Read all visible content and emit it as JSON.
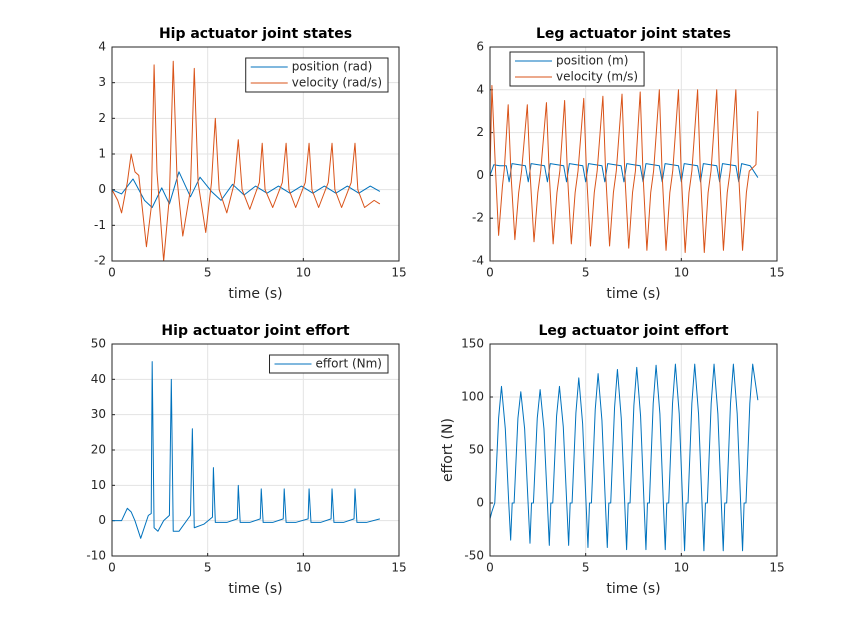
{
  "chart_data": [
    {
      "type": "line",
      "title": "Hip actuator joint states",
      "xlabel": "time (s)",
      "xlim": [
        0,
        15
      ],
      "xticks": [
        0,
        5,
        10,
        15
      ],
      "ylim": [
        -2,
        4
      ],
      "yticks": [
        -2,
        -1,
        0,
        1,
        2,
        3,
        4
      ],
      "grid": true,
      "legend": "upper-right",
      "series": [
        {
          "name": "position (rad)",
          "color": "#0072bd",
          "x": [
            0,
            0.5,
            1.1,
            1.7,
            2.1,
            2.6,
            3.0,
            3.5,
            4.1,
            4.6,
            5.2,
            5.7,
            6.3,
            6.9,
            7.5,
            8.1,
            8.7,
            9.3,
            9.9,
            10.5,
            11.1,
            11.7,
            12.3,
            12.9,
            13.5,
            14
          ],
          "values": [
            0,
            -0.12,
            0.3,
            -0.3,
            -0.5,
            0.05,
            -0.4,
            0.5,
            -0.2,
            0.35,
            -0.05,
            -0.3,
            0.15,
            -0.15,
            0.1,
            -0.1,
            0.1,
            -0.1,
            0.1,
            -0.1,
            0.1,
            -0.1,
            0.1,
            -0.1,
            0.1,
            -0.05
          ]
        },
        {
          "name": "velocity (rad/s)",
          "color": "#d95319",
          "x": [
            0,
            0.3,
            0.5,
            0.8,
            1.0,
            1.2,
            1.4,
            1.8,
            2.05,
            2.2,
            2.35,
            2.7,
            3.0,
            3.2,
            3.4,
            3.7,
            4.1,
            4.3,
            4.5,
            4.9,
            5.2,
            5.4,
            5.6,
            6.0,
            6.4,
            6.6,
            6.8,
            7.2,
            7.7,
            7.85,
            8.0,
            8.4,
            8.9,
            9.1,
            9.25,
            9.6,
            10.1,
            10.3,
            10.45,
            10.8,
            11.3,
            11.5,
            11.65,
            12.0,
            12.5,
            12.7,
            12.85,
            13.2,
            13.7,
            14
          ],
          "values": [
            0,
            -0.3,
            -0.65,
            0.2,
            1.0,
            0.5,
            0.4,
            -1.6,
            -0.5,
            3.5,
            0.5,
            -2.0,
            -0.2,
            3.6,
            0.3,
            -1.3,
            0.0,
            3.4,
            0.2,
            -1.2,
            0.2,
            2.0,
            0.0,
            -0.65,
            0.2,
            1.4,
            0.0,
            -0.55,
            0.2,
            1.3,
            0.0,
            -0.5,
            0.2,
            1.3,
            0.0,
            -0.5,
            0.2,
            1.3,
            0.0,
            -0.5,
            0.2,
            1.3,
            0.0,
            -0.5,
            0.2,
            1.3,
            0.0,
            -0.5,
            -0.3,
            -0.4
          ]
        }
      ]
    },
    {
      "type": "line",
      "title": "Leg actuator joint states",
      "xlabel": "time (s)",
      "xlim": [
        0,
        15
      ],
      "xticks": [
        0,
        5,
        10,
        15
      ],
      "ylim": [
        -4,
        6
      ],
      "yticks": [
        -4,
        -2,
        0,
        2,
        4,
        6
      ],
      "grid": true,
      "legend": "upper-left",
      "series": [
        {
          "name": "position (m)",
          "color": "#0072bd",
          "x": [
            0,
            0.2,
            0.5,
            0.85,
            1.0,
            1.15,
            1.85,
            2.0,
            2.15,
            2.85,
            3.0,
            3.15,
            3.85,
            4.0,
            4.15,
            4.85,
            5.0,
            5.15,
            5.85,
            6.0,
            6.15,
            6.85,
            7.0,
            7.15,
            7.85,
            8.0,
            8.15,
            8.85,
            9.0,
            9.15,
            9.85,
            10.0,
            10.15,
            10.85,
            11.0,
            11.15,
            11.85,
            12.0,
            12.15,
            12.85,
            13.0,
            13.15,
            13.6,
            14
          ],
          "values": [
            0,
            0.5,
            0.45,
            0.45,
            -0.3,
            0.55,
            0.45,
            -0.3,
            0.55,
            0.45,
            -0.3,
            0.55,
            0.45,
            -0.3,
            0.55,
            0.45,
            -0.3,
            0.55,
            0.45,
            -0.3,
            0.55,
            0.45,
            -0.3,
            0.55,
            0.45,
            -0.3,
            0.55,
            0.45,
            -0.3,
            0.55,
            0.45,
            -0.3,
            0.55,
            0.45,
            -0.3,
            0.55,
            0.45,
            -0.3,
            0.55,
            0.45,
            -0.3,
            0.55,
            0.45,
            -0.1
          ]
        },
        {
          "name": "velocity (m/s)",
          "color": "#d95319",
          "x": [
            0,
            0.1,
            0.3,
            0.45,
            0.65,
            0.75,
            0.95,
            1.1,
            1.3,
            1.5,
            1.65,
            1.95,
            2.1,
            2.3,
            2.5,
            2.65,
            2.95,
            3.1,
            3.3,
            3.5,
            3.65,
            3.9,
            4.05,
            4.25,
            4.45,
            4.6,
            4.9,
            5.05,
            5.25,
            5.45,
            5.6,
            5.9,
            6.05,
            6.25,
            6.45,
            6.6,
            6.9,
            7.05,
            7.25,
            7.45,
            7.6,
            7.85,
            8.0,
            8.2,
            8.4,
            8.55,
            8.85,
            9.0,
            9.2,
            9.4,
            9.55,
            9.85,
            10.0,
            10.2,
            10.4,
            10.55,
            10.85,
            11.0,
            11.2,
            11.4,
            11.55,
            11.85,
            12.0,
            12.2,
            12.4,
            12.55,
            12.85,
            13.0,
            13.2,
            13.4,
            13.55,
            13.9,
            14
          ],
          "values": [
            0,
            4.2,
            0,
            -2.8,
            -0.5,
            0.3,
            3.3,
            0,
            -3.0,
            -0.8,
            0.2,
            3.3,
            0,
            -3.1,
            -0.8,
            0.2,
            3.4,
            0,
            -3.2,
            -0.8,
            0.2,
            3.5,
            0,
            -3.2,
            -0.8,
            0.2,
            3.6,
            0,
            -3.3,
            -0.8,
            0.2,
            3.7,
            0,
            -3.3,
            -0.8,
            0.2,
            3.8,
            0,
            -3.4,
            -0.8,
            0.2,
            3.9,
            0,
            -3.5,
            -0.8,
            0.2,
            4.0,
            0,
            -3.5,
            -0.8,
            0.2,
            4.0,
            0,
            -3.6,
            -0.8,
            0.2,
            4.0,
            0,
            -3.6,
            -0.8,
            0.2,
            4.0,
            0,
            -3.5,
            -0.8,
            0.2,
            4.0,
            0,
            -3.5,
            -0.8,
            0.2,
            0.5,
            3.0
          ]
        }
      ]
    },
    {
      "type": "line",
      "title": "Hip actuator joint effort",
      "xlabel": "time (s)",
      "xlim": [
        0,
        15
      ],
      "xticks": [
        0,
        5,
        10,
        15
      ],
      "ylim": [
        -10,
        50
      ],
      "yticks": [
        -10,
        0,
        10,
        20,
        30,
        40,
        50
      ],
      "grid": true,
      "legend": "upper-right",
      "series": [
        {
          "name": "effort (Nm)",
          "color": "#0072bd",
          "x": [
            0,
            0.5,
            0.8,
            1.0,
            1.2,
            1.5,
            1.9,
            2.05,
            2.1,
            2.2,
            2.4,
            2.7,
            3.0,
            3.1,
            3.2,
            3.5,
            4.1,
            4.2,
            4.3,
            4.8,
            5.25,
            5.3,
            5.4,
            6.0,
            6.55,
            6.6,
            6.7,
            7.2,
            7.75,
            7.8,
            7.9,
            8.4,
            8.95,
            9.0,
            9.1,
            9.6,
            10.25,
            10.3,
            10.4,
            10.9,
            11.45,
            11.5,
            11.6,
            12.1,
            12.65,
            12.7,
            12.8,
            13.3,
            14
          ],
          "values": [
            0,
            0,
            3.5,
            2.5,
            0,
            -5,
            1.5,
            2,
            45,
            -2,
            -3,
            0,
            1.5,
            40,
            -3,
            -3,
            1.5,
            26,
            -2,
            -1,
            1,
            15,
            -0.5,
            -0.5,
            0.5,
            10,
            -0.5,
            -0.5,
            0.5,
            9,
            -0.5,
            -0.5,
            0.5,
            9,
            -0.5,
            -0.5,
            0.5,
            9,
            -0.5,
            -0.5,
            0.5,
            9,
            -0.5,
            -0.5,
            0.5,
            9,
            -0.5,
            -0.5,
            0.5
          ]
        }
      ]
    },
    {
      "type": "line",
      "title": "Leg actuator joint effort",
      "xlabel": "time (s)",
      "ylabel": "effort (N)",
      "xlim": [
        0,
        15
      ],
      "xticks": [
        0,
        5,
        10,
        15
      ],
      "ylim": [
        -50,
        150
      ],
      "yticks": [
        -50,
        0,
        50,
        100,
        150
      ],
      "grid": true,
      "series": [
        {
          "color": "#0072bd",
          "x": [
            0,
            0.1,
            0.25,
            0.45,
            0.6,
            0.8,
            0.98,
            1.08,
            1.16,
            1.26,
            1.46,
            1.61,
            1.81,
            1.99,
            2.09,
            2.17,
            2.27,
            2.47,
            2.62,
            2.82,
            3.0,
            3.1,
            3.18,
            3.28,
            3.48,
            3.63,
            3.83,
            4.01,
            4.11,
            4.19,
            4.29,
            4.49,
            4.64,
            4.84,
            5.02,
            5.12,
            5.2,
            5.3,
            5.5,
            5.65,
            5.85,
            6.03,
            6.13,
            6.21,
            6.31,
            6.51,
            6.66,
            6.86,
            7.04,
            7.14,
            7.22,
            7.32,
            7.52,
            7.67,
            7.87,
            8.05,
            8.15,
            8.23,
            8.33,
            8.53,
            8.68,
            8.88,
            9.06,
            9.16,
            9.24,
            9.34,
            9.54,
            9.69,
            9.89,
            10.07,
            10.17,
            10.25,
            10.35,
            10.55,
            10.7,
            10.9,
            11.08,
            11.18,
            11.26,
            11.36,
            11.56,
            11.71,
            11.91,
            12.09,
            12.19,
            12.27,
            12.37,
            12.57,
            12.72,
            12.92,
            13.1,
            13.2,
            13.28,
            13.38,
            13.58,
            13.73,
            14
          ],
          "values": [
            -15,
            -8,
            0,
            80,
            110,
            70,
            0,
            -35,
            0,
            0,
            80,
            105,
            70,
            0,
            -38,
            0,
            0,
            80,
            107,
            70,
            0,
            -40,
            0,
            0,
            82,
            110,
            72,
            0,
            -40,
            0,
            0,
            85,
            118,
            75,
            0,
            -42,
            0,
            0,
            88,
            122,
            78,
            0,
            -42,
            0,
            0,
            90,
            126,
            80,
            0,
            -44,
            0,
            0,
            92,
            128,
            82,
            0,
            -44,
            0,
            0,
            94,
            130,
            84,
            0,
            -44,
            0,
            0,
            94,
            131,
            84,
            0,
            -45,
            0,
            0,
            94,
            131,
            84,
            0,
            -45,
            0,
            0,
            94,
            131,
            84,
            0,
            -45,
            0,
            0,
            94,
            131,
            84,
            0,
            -45,
            0,
            0,
            94,
            131,
            97
          ]
        }
      ]
    }
  ]
}
